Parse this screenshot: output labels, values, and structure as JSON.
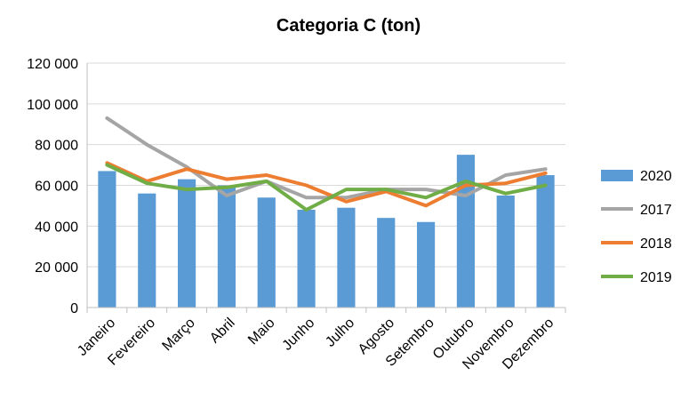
{
  "chart_data": {
    "type": "bar",
    "title": "Categoria C (ton)",
    "xlabel": "",
    "ylabel": "",
    "ylim": [
      0,
      120000
    ],
    "yticks": [
      0,
      20000,
      40000,
      60000,
      80000,
      100000,
      120000
    ],
    "ytick_labels": [
      "0",
      "20 000",
      "40 000",
      "60 000",
      "80 000",
      "100 000",
      "120 000"
    ],
    "grid": true,
    "legend_position": "right",
    "categories": [
      "Janeiro",
      "Fevereiro",
      "Março",
      "Abril",
      "Maio",
      "Junho",
      "Julho",
      "Agosto",
      "Setembro",
      "Outubro",
      "Novembro",
      "Dezembro"
    ],
    "series": [
      {
        "name": "2020",
        "type": "bar",
        "color": "#5B9BD5",
        "values": [
          67000,
          56000,
          63000,
          60000,
          54000,
          48000,
          49000,
          44000,
          42000,
          75000,
          55000,
          65000
        ]
      },
      {
        "name": "2017",
        "type": "line",
        "color": "#A5A5A5",
        "values": [
          93000,
          80000,
          69000,
          55000,
          62000,
          54000,
          54000,
          58000,
          58000,
          55000,
          65000,
          68000
        ]
      },
      {
        "name": "2018",
        "type": "line",
        "color": "#ED7D31",
        "values": [
          71000,
          62000,
          68000,
          63000,
          65000,
          60000,
          52000,
          57000,
          50000,
          60000,
          61000,
          66000
        ]
      },
      {
        "name": "2019",
        "type": "line",
        "color": "#70AD47",
        "values": [
          70000,
          61000,
          58000,
          59000,
          62000,
          48000,
          58000,
          58000,
          54000,
          62000,
          56000,
          60000
        ]
      }
    ]
  }
}
